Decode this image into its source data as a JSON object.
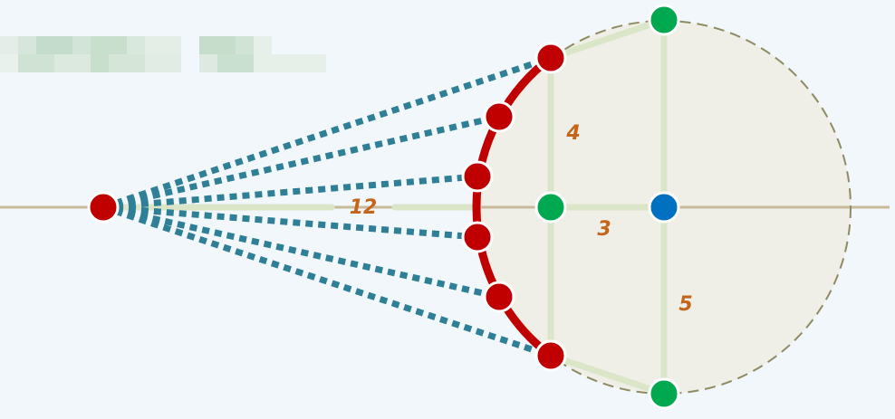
{
  "title": {
    "text": "",
    "obscured": true
  },
  "diagram": {
    "dimension_labels": {
      "distance": "12",
      "inner_vertical": "4",
      "horizontal_offset": "3",
      "outer_vertical": "5"
    },
    "counts": {
      "sight_lines": 6,
      "arc_points": 6,
      "green_points": 3,
      "blue_points": 1,
      "source_points": 1
    }
  },
  "colors": {
    "background": "#f2f7fb",
    "circle_fill": "#efefe8",
    "circle_stroke": "#8f8b62",
    "axis": "#c7b99a",
    "guide": "#dbe6c8",
    "sight_line": "#2f8097",
    "arc": "#c00000",
    "red_point": "#c00000",
    "green_point": "#00a84f",
    "blue_point": "#0070c0",
    "label": "#c5651a",
    "point_outline": "#ffffff"
  }
}
